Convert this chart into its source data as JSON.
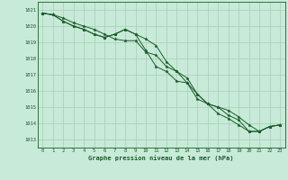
{
  "title": "Graphe pression niveau de la mer (hPa)",
  "background_color": "#c8ead8",
  "grid_color": "#a8cdb8",
  "line_color": "#1a5c2a",
  "xlim": [
    -0.5,
    23.5
  ],
  "ylim": [
    1012.5,
    1021.5
  ],
  "yticks": [
    1013,
    1014,
    1015,
    1016,
    1017,
    1018,
    1019,
    1020,
    1021
  ],
  "xticks": [
    0,
    1,
    2,
    3,
    4,
    5,
    6,
    7,
    8,
    9,
    10,
    11,
    12,
    13,
    14,
    15,
    16,
    17,
    18,
    19,
    20,
    21,
    22,
    23
  ],
  "series": [
    [
      1020.8,
      1020.7,
      1020.5,
      1020.2,
      1020.0,
      1019.8,
      1019.5,
      1019.2,
      1019.1,
      1019.1,
      1018.4,
      1018.2,
      1017.5,
      1017.2,
      1016.5,
      1015.8,
      1015.2,
      1014.6,
      1014.3,
      1013.9,
      1013.5,
      1013.5,
      1013.8,
      1013.9
    ],
    [
      1020.8,
      1020.7,
      1020.3,
      1020.0,
      1019.8,
      1019.5,
      1019.3,
      1019.5,
      1019.8,
      1019.5,
      1019.2,
      1018.8,
      1017.8,
      1017.2,
      1016.8,
      1015.8,
      1015.2,
      1015.0,
      1014.8,
      1014.4,
      1013.9,
      1013.5,
      1013.8,
      1013.9
    ],
    [
      1020.8,
      1020.7,
      1020.3,
      1020.0,
      1019.8,
      1019.5,
      1019.3,
      1019.5,
      1019.8,
      1019.5,
      1018.5,
      1017.5,
      1017.2,
      1016.6,
      1016.5,
      1015.5,
      1015.2,
      1015.0,
      1014.5,
      1014.2,
      1013.5,
      1013.5,
      1013.8,
      1013.9
    ]
  ]
}
